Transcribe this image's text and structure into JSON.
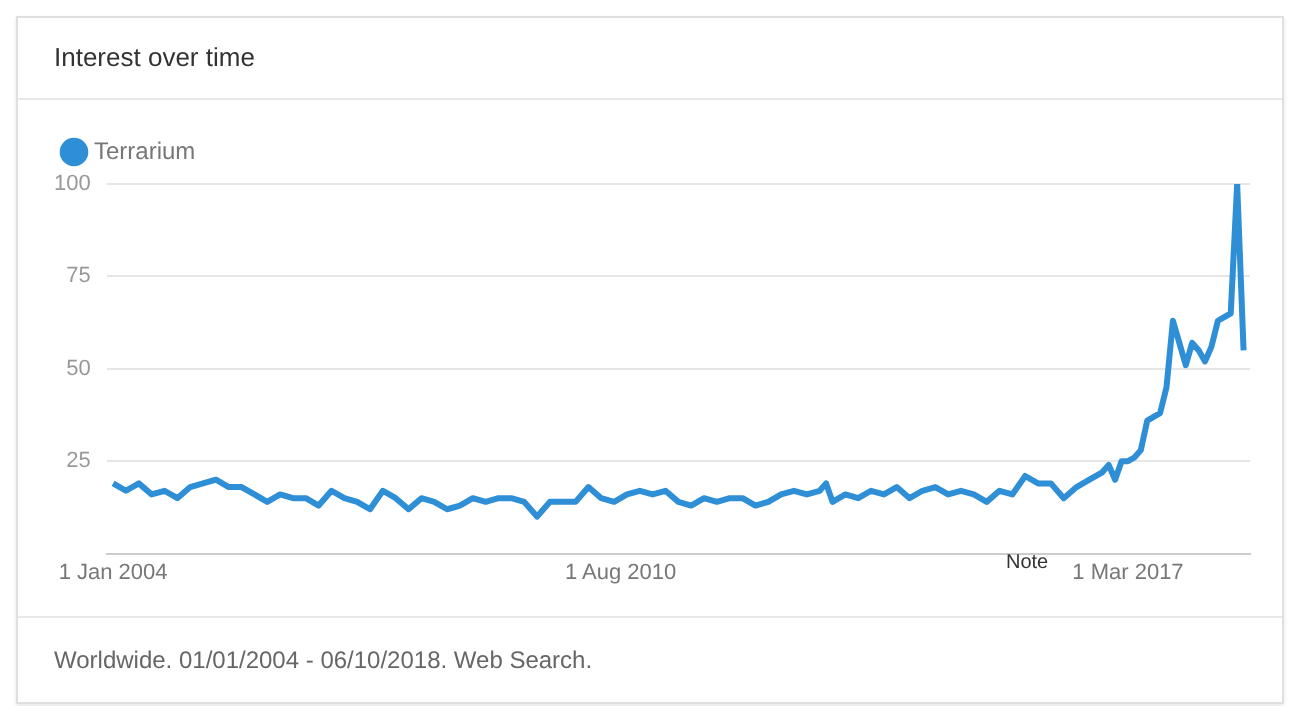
{
  "chart_data": {
    "type": "line",
    "title": "Interest over time",
    "x": [
      "2004-01",
      "2004-03",
      "2004-05",
      "2004-07",
      "2004-09",
      "2004-11",
      "2005-01",
      "2005-03",
      "2005-05",
      "2005-07",
      "2005-09",
      "2005-11",
      "2006-01",
      "2006-03",
      "2006-05",
      "2006-07",
      "2006-09",
      "2006-11",
      "2007-01",
      "2007-03",
      "2007-05",
      "2007-07",
      "2007-09",
      "2007-11",
      "2008-01",
      "2008-03",
      "2008-05",
      "2008-07",
      "2008-09",
      "2008-11",
      "2009-01",
      "2009-03",
      "2009-05",
      "2009-07",
      "2009-09",
      "2009-11",
      "2010-01",
      "2010-03",
      "2010-05",
      "2010-07",
      "2010-09",
      "2010-11",
      "2011-01",
      "2011-03",
      "2011-05",
      "2011-07",
      "2011-09",
      "2011-11",
      "2012-01",
      "2012-03",
      "2012-05",
      "2012-07",
      "2012-09",
      "2012-11",
      "2013-01",
      "2013-03",
      "2013-04",
      "2013-05",
      "2013-07",
      "2013-09",
      "2013-11",
      "2014-01",
      "2014-03",
      "2014-05",
      "2014-07",
      "2014-09",
      "2014-11",
      "2015-01",
      "2015-03",
      "2015-05",
      "2015-07",
      "2015-09",
      "2015-11",
      "2016-01",
      "2016-03",
      "2016-05",
      "2016-07",
      "2016-09",
      "2016-11",
      "2016-12",
      "2017-01",
      "2017-02",
      "2017-03",
      "2017-04",
      "2017-05",
      "2017-06",
      "2017-07",
      "2017-08",
      "2017-09",
      "2017-10",
      "2017-11",
      "2017-12",
      "2018-01",
      "2018-02",
      "2018-03",
      "2018-04",
      "2018-05",
      "2018-06",
      "2018-07",
      "2018-08",
      "2018-09"
    ],
    "series": [
      {
        "name": "Terrarium",
        "color": "#2e8fd6",
        "values": [
          19,
          17,
          19,
          16,
          17,
          15,
          18,
          19,
          20,
          18,
          18,
          16,
          14,
          16,
          15,
          15,
          13,
          17,
          15,
          14,
          12,
          17,
          15,
          12,
          15,
          14,
          12,
          13,
          15,
          14,
          15,
          15,
          14,
          10,
          14,
          14,
          14,
          18,
          15,
          14,
          16,
          17,
          16,
          17,
          14,
          13,
          15,
          14,
          15,
          15,
          13,
          14,
          16,
          17,
          16,
          17,
          19,
          14,
          16,
          15,
          17,
          16,
          18,
          15,
          17,
          18,
          16,
          17,
          16,
          14,
          17,
          16,
          21,
          19,
          19,
          15,
          18,
          20,
          22,
          24,
          20,
          25,
          25,
          26,
          28,
          36,
          37,
          38,
          45,
          63,
          57,
          51,
          57,
          55,
          52,
          56,
          63,
          64,
          65,
          100,
          55
        ]
      }
    ],
    "xlim": [
      "2003-12",
      "2018-10"
    ],
    "xticks": [
      {
        "value": "2004-01",
        "label": "1 Jan 2004"
      },
      {
        "value": "2010-08",
        "label": "1 Aug 2010"
      },
      {
        "value": "2017-03",
        "label": "1 Mar 2017"
      }
    ],
    "ylim": [
      0,
      100
    ],
    "yticks": [
      25,
      50,
      75,
      100
    ],
    "grid": "y",
    "legend": "top left",
    "marker": "none",
    "annotations": [
      "Note",
      "Worldwide. 01/01/2004 - 06/10/2018. Web Search."
    ]
  }
}
